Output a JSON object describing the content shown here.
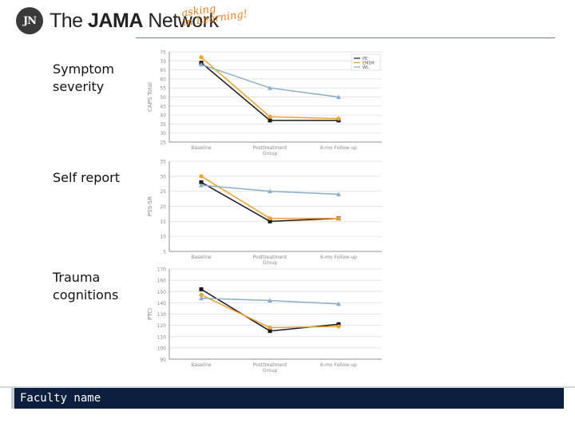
{
  "header": {
    "logo_badge": "JN",
    "logo_text_light": "The ",
    "logo_text_bold": "JAMA",
    "logo_text_end": " Network",
    "tagline_1": "asking",
    "tagline_2": "in Learning!"
  },
  "labels": {
    "symptom": [
      "Symptom",
      "severity"
    ],
    "self": [
      "Self report"
    ],
    "trauma": [
      "Trauma",
      "cognitions"
    ]
  },
  "footer": {
    "text": "Faculty name"
  },
  "colors": {
    "pe": "#1a1a1a",
    "emdr": "#f0a030",
    "wl": "#8aaec8",
    "grid": "#e4e4e4",
    "axis": "#777777"
  },
  "chart_data": [
    {
      "type": "line",
      "title": "",
      "xlabel": "Group",
      "ylabel": "CAPS Total",
      "categories": [
        "Baseline",
        "Posttreatment",
        "6-mo Follow-up"
      ],
      "ylim": [
        25,
        75
      ],
      "yticks": [
        25,
        30,
        35,
        40,
        45,
        50,
        55,
        60,
        65,
        70,
        75
      ],
      "legend": "top-right",
      "series": [
        {
          "name": "PE",
          "values": [
            69,
            37,
            37
          ]
        },
        {
          "name": "EMDR",
          "values": [
            72,
            39,
            38
          ]
        },
        {
          "name": "WL",
          "values": [
            68,
            55,
            50
          ]
        }
      ]
    },
    {
      "type": "line",
      "title": "",
      "xlabel": "Group",
      "ylabel": "PSS-SR",
      "categories": [
        "Baseline",
        "Posttreatment",
        "6-mo Follow-up"
      ],
      "ylim": [
        5,
        35
      ],
      "yticks": [
        5,
        10,
        15,
        20,
        25,
        30,
        35
      ],
      "series": [
        {
          "name": "PE",
          "values": [
            28,
            15,
            16
          ]
        },
        {
          "name": "EMDR",
          "values": [
            30,
            16,
            16
          ]
        },
        {
          "name": "WL",
          "values": [
            27,
            25,
            24
          ]
        }
      ]
    },
    {
      "type": "line",
      "title": "",
      "xlabel": "Group",
      "ylabel": "PTCI",
      "categories": [
        "Baseline",
        "Posttreatment",
        "6-mo Follow-up"
      ],
      "ylim": [
        90,
        170
      ],
      "yticks": [
        90,
        100,
        110,
        120,
        130,
        140,
        150,
        160,
        170
      ],
      "series": [
        {
          "name": "PE",
          "values": [
            152,
            115,
            121
          ]
        },
        {
          "name": "EMDR",
          "values": [
            147,
            118,
            119
          ]
        },
        {
          "name": "WL",
          "values": [
            144,
            142,
            139
          ]
        }
      ]
    }
  ]
}
